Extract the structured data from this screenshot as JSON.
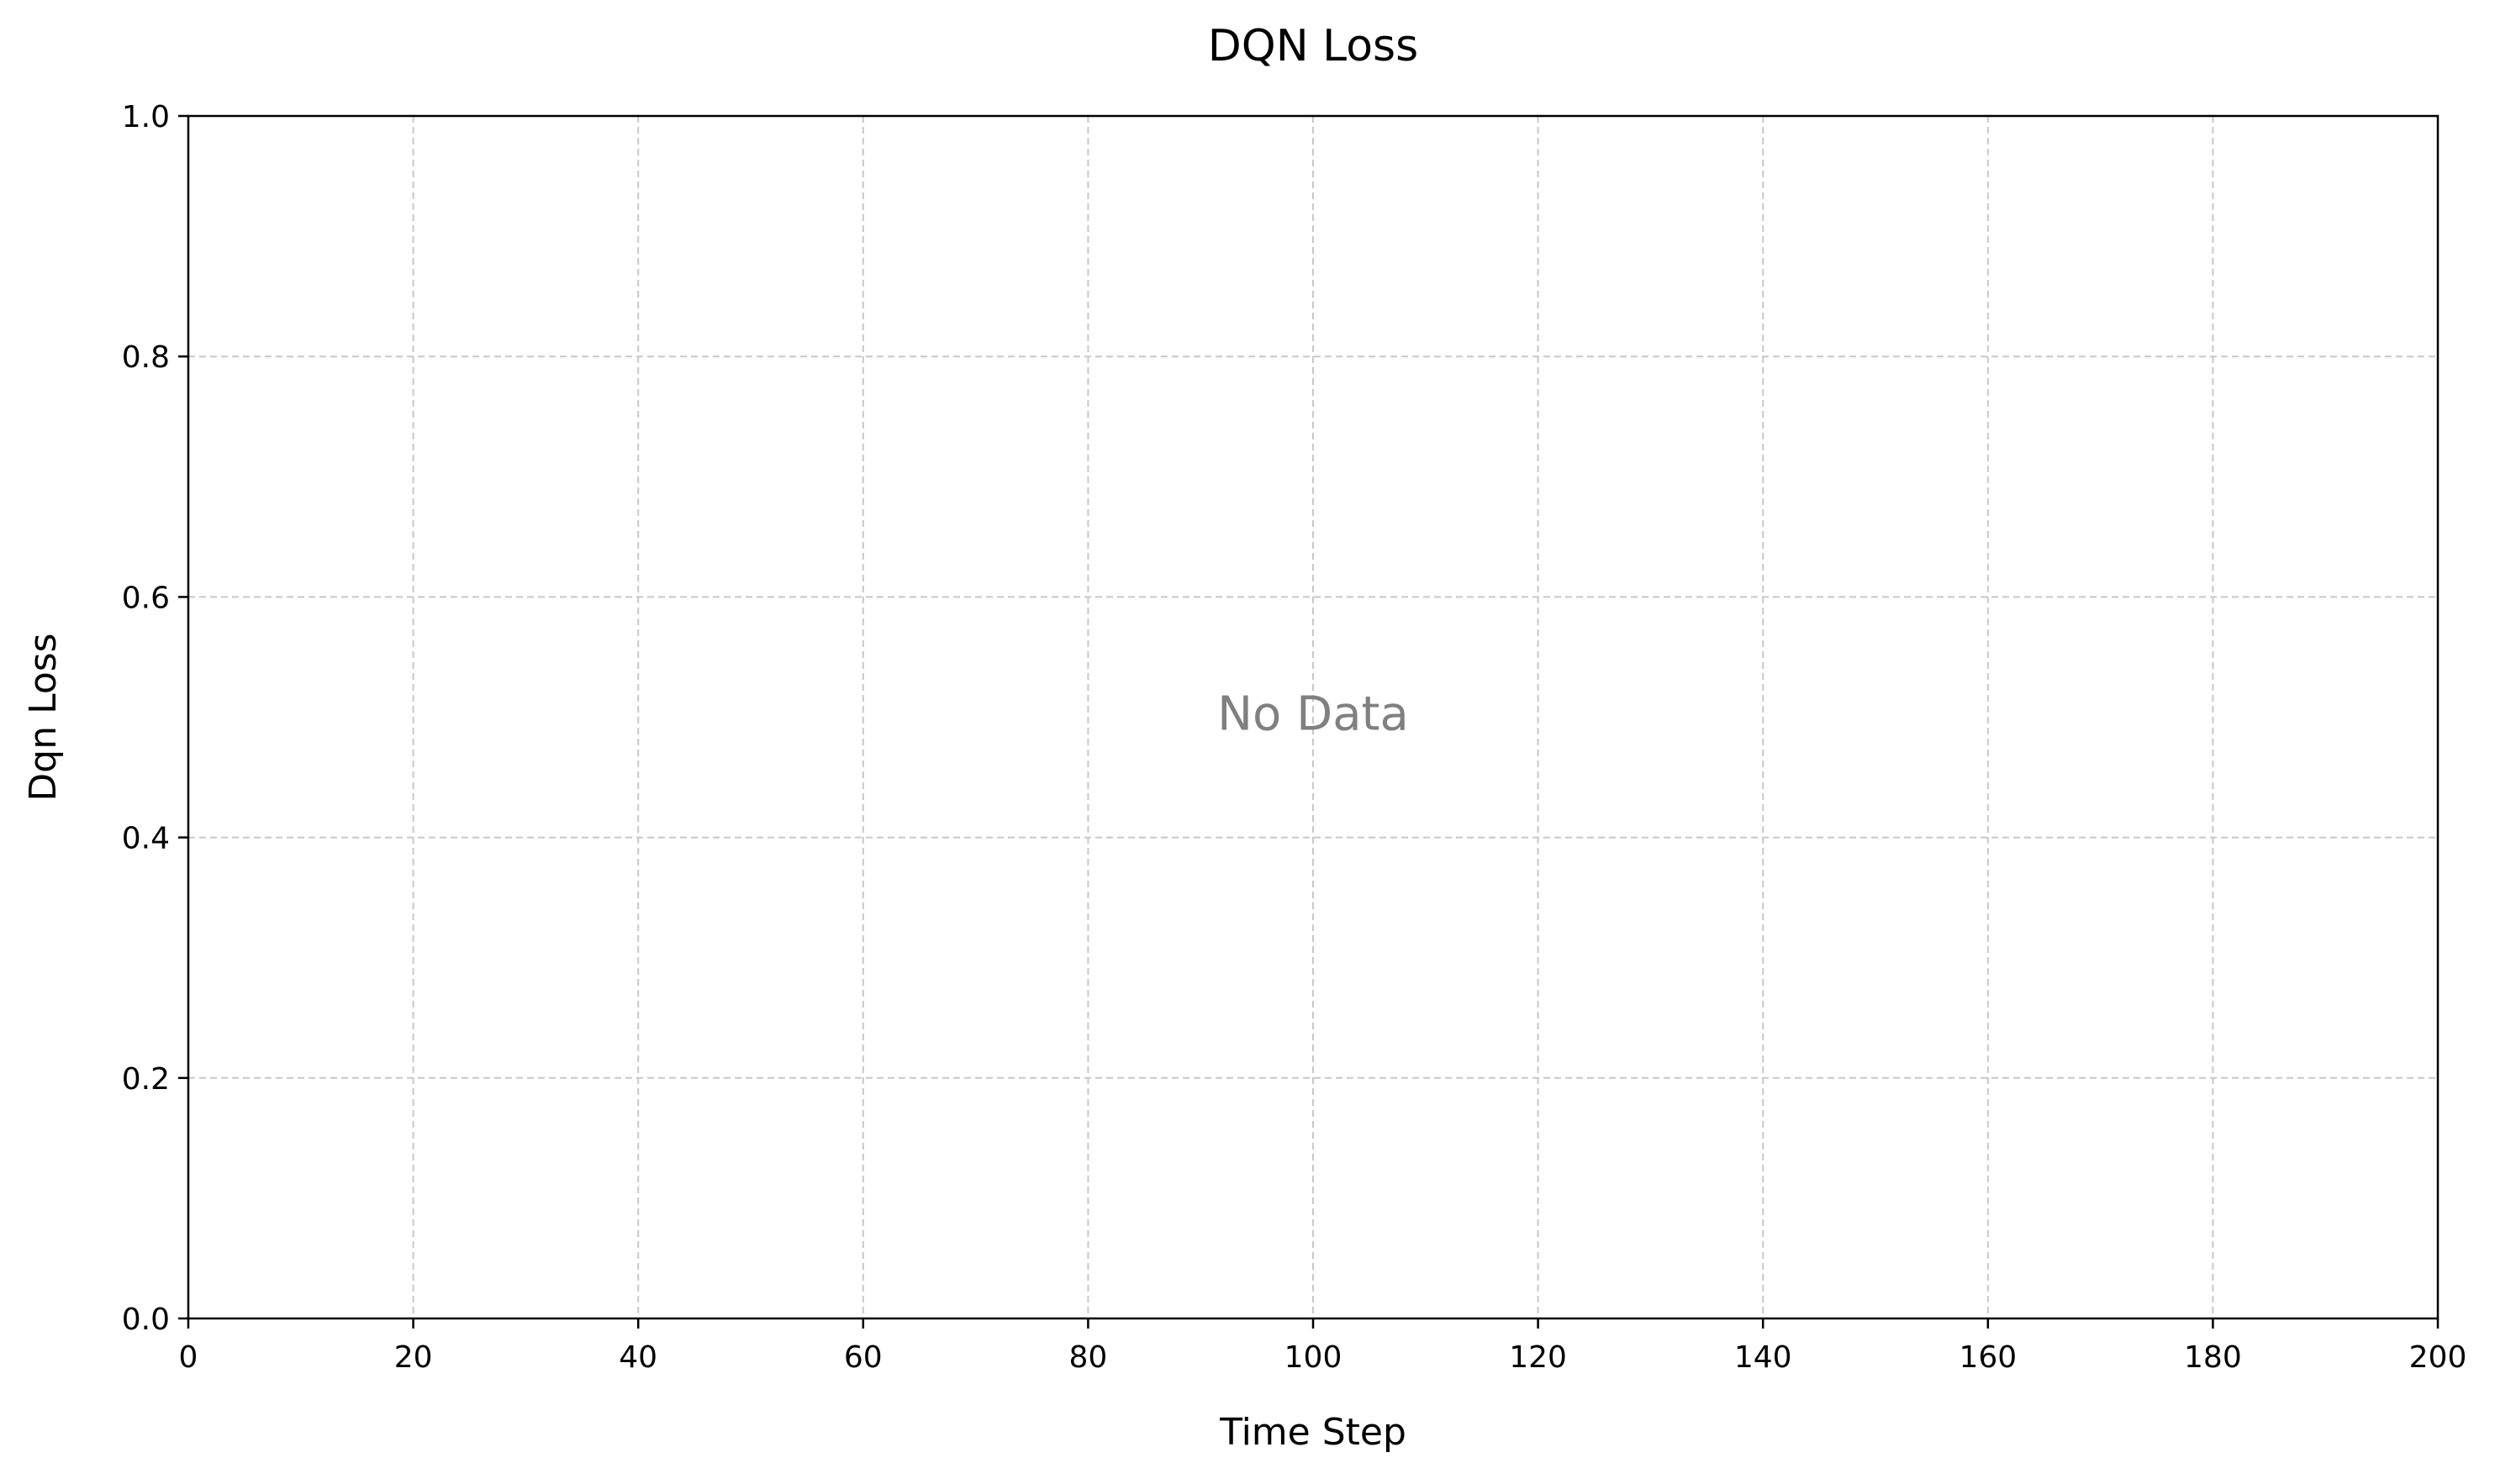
{
  "chart_data": {
    "type": "line",
    "title": "DQN Loss",
    "xlabel": "Time Step",
    "ylabel": "Dqn Loss",
    "xlim": [
      0,
      200
    ],
    "ylim": [
      0,
      1
    ],
    "x_ticks": [
      0,
      20,
      40,
      60,
      80,
      100,
      120,
      140,
      160,
      180,
      200
    ],
    "x_tick_labels": [
      "0",
      "20",
      "40",
      "60",
      "80",
      "100",
      "120",
      "140",
      "160",
      "180",
      "200"
    ],
    "y_ticks": [
      0,
      0.2,
      0.4,
      0.6,
      0.8,
      1.0
    ],
    "y_tick_labels": [
      "0.0",
      "0.2",
      "0.4",
      "0.6",
      "0.8",
      "1.0"
    ],
    "grid": true,
    "series": [],
    "annotations": [
      {
        "text": "No Data",
        "x": 100,
        "y": 0.5
      }
    ],
    "colors": {
      "grid": "#c8c8c8",
      "axis": "#000000",
      "annotation": "#808080"
    }
  }
}
